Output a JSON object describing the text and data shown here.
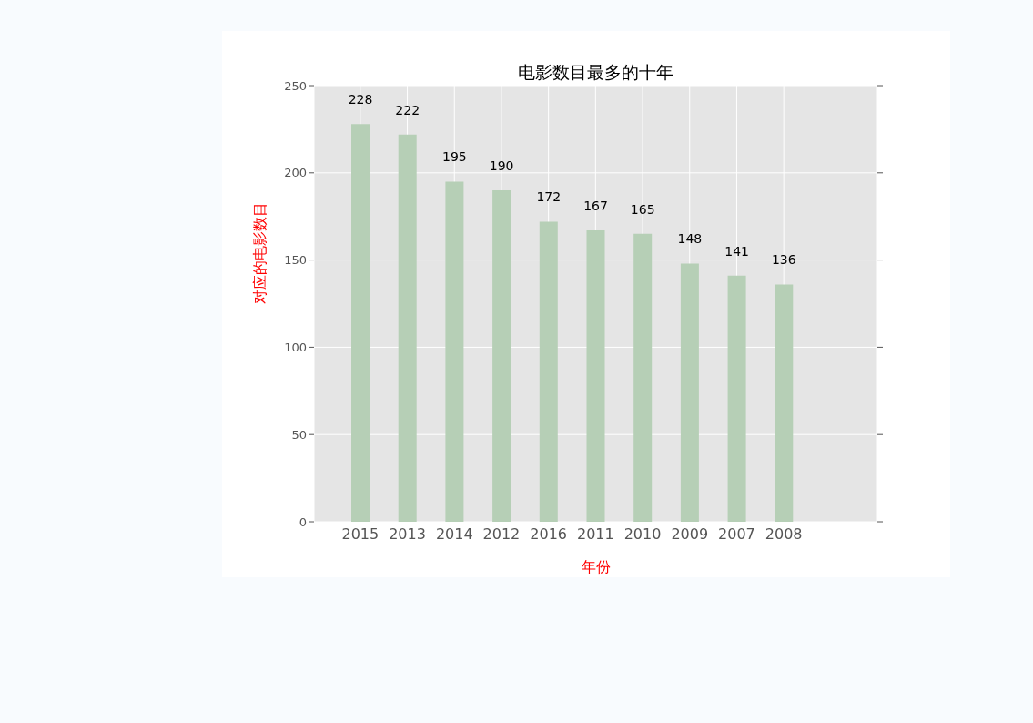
{
  "chart_data": {
    "type": "bar",
    "title": "电影数目最多的十年",
    "xlabel": "年份",
    "ylabel": "对应的电影数目",
    "categories": [
      "2015",
      "2013",
      "2014",
      "2012",
      "2016",
      "2011",
      "2010",
      "2009",
      "2007",
      "2008"
    ],
    "values": [
      228,
      222,
      195,
      190,
      172,
      167,
      165,
      148,
      141,
      136
    ],
    "color": "#b6cfb6",
    "ylim": [
      0,
      250
    ],
    "yticks": [
      0,
      50,
      100,
      150,
      200,
      250
    ],
    "grid": true,
    "data_labels": true,
    "legend": false
  }
}
